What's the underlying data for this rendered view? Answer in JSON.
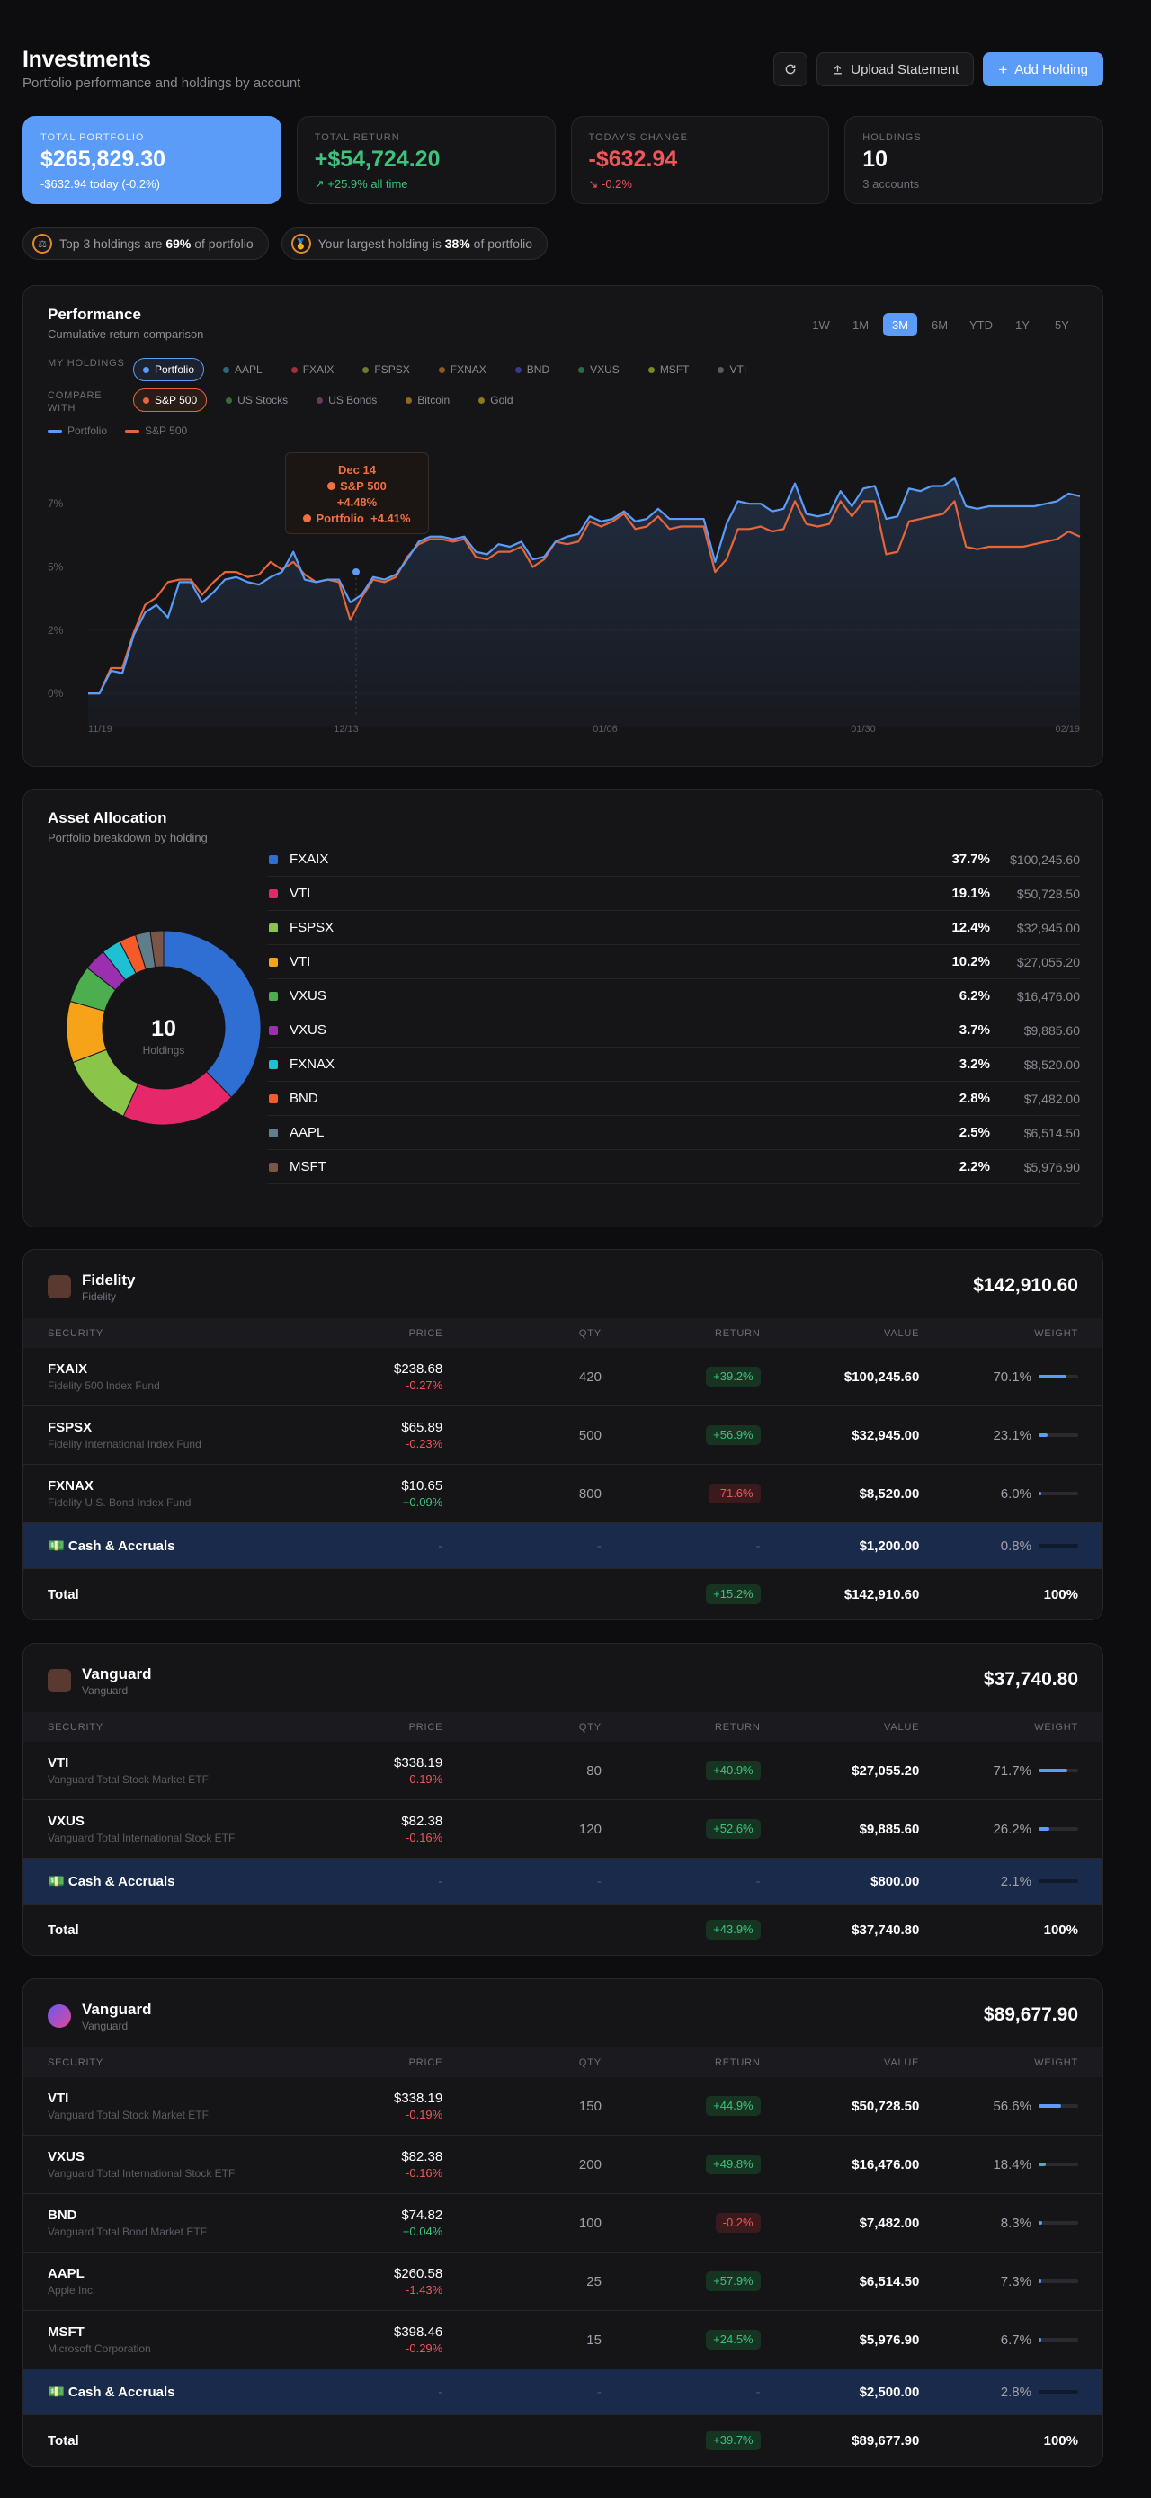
{
  "header": {
    "title": "Investments",
    "subtitle": "Portfolio performance and holdings by account",
    "refresh_icon": "refresh-icon",
    "upload_label": "Upload Statement",
    "add_label": "Add Holding"
  },
  "stats": [
    {
      "label": "Total Portfolio",
      "value": "$265,829.30",
      "note": "-$632.94 today (-0.2%)"
    },
    {
      "label": "Total Return",
      "value": "+$54,724.20",
      "note": "+25.9% all time"
    },
    {
      "label": "Today's Change",
      "value": "-$632.94",
      "note": "-0.2%"
    },
    {
      "label": "Holdings",
      "value": "10",
      "note": "3 accounts"
    }
  ],
  "insights": [
    {
      "pre": "Top 3 holdings are ",
      "bold": "69%",
      "post": " of portfolio"
    },
    {
      "pre": "Your largest holding is ",
      "bold": "38%",
      "post": " of portfolio"
    }
  ],
  "performance": {
    "title": "Performance",
    "subtitle": "Cumulative return comparison",
    "ranges": [
      "1W",
      "1M",
      "3M",
      "6M",
      "YTD",
      "1Y",
      "5Y"
    ],
    "active_range": "3M",
    "my_holdings_label": "My Holdings",
    "compare_label": "Compare with",
    "holdings": [
      {
        "name": "Portfolio",
        "color": "#5b9cf8"
      },
      {
        "name": "AAPL",
        "color": "#2a6a78"
      },
      {
        "name": "FXAIX",
        "color": "#a03040"
      },
      {
        "name": "FSPSX",
        "color": "#6a7a30"
      },
      {
        "name": "FXNAX",
        "color": "#8a5a20"
      },
      {
        "name": "BND",
        "color": "#3a3a8a"
      },
      {
        "name": "VXUS",
        "color": "#2a6a48"
      },
      {
        "name": "MSFT",
        "color": "#7a8a20"
      },
      {
        "name": "VTI",
        "color": "#5a5a62"
      }
    ],
    "compare": [
      {
        "name": "S&P 500",
        "color": "#e8653a"
      },
      {
        "name": "US Stocks",
        "color": "#3a6a3a"
      },
      {
        "name": "US Bonds",
        "color": "#6a3a5a"
      },
      {
        "name": "Bitcoin",
        "color": "#8a6a20"
      },
      {
        "name": "Gold",
        "color": "#8a7a20"
      }
    ],
    "legend": [
      {
        "name": "Portfolio",
        "color": "#5b9cf8"
      },
      {
        "name": "S&P 500",
        "color": "#e8653a"
      }
    ],
    "tooltip": {
      "date": "Dec 14",
      "sp_label": "S&P 500",
      "sp_value": "+4.48%",
      "pf_label": "Portfolio",
      "pf_value": "+4.41%"
    }
  },
  "chart_data": {
    "type": "line",
    "y_ticks": [
      "7%",
      "5%",
      "2%",
      "0%"
    ],
    "x_ticks": [
      "11/19",
      "12/13",
      "01/06",
      "01/30",
      "02/19"
    ],
    "ylim": [
      -0.6,
      9
    ],
    "series": [
      {
        "name": "Portfolio",
        "color": "#5b9cf8",
        "values": [
          0,
          0,
          0.9,
          0.8,
          2.3,
          3.2,
          3.5,
          3.0,
          4.4,
          4.4,
          3.6,
          4.0,
          4.5,
          4.6,
          4.4,
          4.3,
          4.6,
          4.8,
          5.6,
          4.5,
          4.4,
          4.5,
          4.5,
          3.6,
          3.9,
          4.6,
          4.5,
          4.7,
          5.3,
          6.0,
          6.2,
          6.2,
          6.1,
          6.2,
          5.6,
          5.5,
          5.9,
          5.8,
          6.0,
          5.3,
          5.4,
          6.0,
          6.2,
          6.3,
          7.0,
          6.8,
          6.9,
          7.2,
          6.8,
          6.9,
          7.3,
          6.9,
          6.9,
          6.9,
          6.9,
          5.2,
          6.7,
          7.6,
          7.5,
          7.5,
          7.2,
          7.3,
          8.3,
          7.1,
          7.0,
          7.1,
          8.0,
          7.4,
          8.1,
          8.2,
          6.9,
          7.0,
          8.1,
          8.0,
          8.2,
          8.2,
          8.5,
          7.4,
          7.3,
          7.4,
          7.4,
          7.4,
          7.4,
          7.4,
          7.5,
          7.6,
          7.9,
          7.8
        ]
      },
      {
        "name": "S&P 500",
        "color": "#e8653a",
        "values": [
          0,
          0,
          1.0,
          1.0,
          2.4,
          3.5,
          3.8,
          4.4,
          4.5,
          4.5,
          3.9,
          4.4,
          4.8,
          4.8,
          4.6,
          4.7,
          5.2,
          4.9,
          5.2,
          4.7,
          4.4,
          4.5,
          4.4,
          2.9,
          3.8,
          4.5,
          4.4,
          4.6,
          5.4,
          5.9,
          6.1,
          6.1,
          6.0,
          6.1,
          5.4,
          5.3,
          5.6,
          5.6,
          5.8,
          5.0,
          5.3,
          6.0,
          5.9,
          6.0,
          6.8,
          6.6,
          6.8,
          7.1,
          6.5,
          6.6,
          7.0,
          6.5,
          6.6,
          6.6,
          6.6,
          4.8,
          5.3,
          6.5,
          6.5,
          6.6,
          6.4,
          6.5,
          7.6,
          6.7,
          6.6,
          6.7,
          7.6,
          7.0,
          7.6,
          7.6,
          5.5,
          5.6,
          6.8,
          6.9,
          7.0,
          7.1,
          7.6,
          5.8,
          5.7,
          5.8,
          5.8,
          5.8,
          5.8,
          5.9,
          6.0,
          6.1,
          6.4,
          6.2
        ]
      }
    ]
  },
  "allocation": {
    "title": "Asset Allocation",
    "subtitle": "Portfolio breakdown by holding",
    "center_value": "10",
    "center_label": "Holdings",
    "items": [
      {
        "name": "FXAIX",
        "pct": "37.7%",
        "amount": "$100,245.60",
        "share": 37.7,
        "color": "#2f6fd4"
      },
      {
        "name": "VTI",
        "pct": "19.1%",
        "amount": "$50,728.50",
        "share": 19.1,
        "color": "#e6286a"
      },
      {
        "name": "FSPSX",
        "pct": "12.4%",
        "amount": "$32,945.00",
        "share": 12.4,
        "color": "#8ac448"
      },
      {
        "name": "VTI",
        "pct": "10.2%",
        "amount": "$27,055.20",
        "share": 10.2,
        "color": "#f6a31a"
      },
      {
        "name": "VXUS",
        "pct": "6.2%",
        "amount": "$16,476.00",
        "share": 6.2,
        "color": "#4cae4f"
      },
      {
        "name": "VXUS",
        "pct": "3.7%",
        "amount": "$9,885.60",
        "share": 3.7,
        "color": "#9b2fb0"
      },
      {
        "name": "FXNAX",
        "pct": "3.2%",
        "amount": "$8,520.00",
        "share": 3.2,
        "color": "#1ec0d4"
      },
      {
        "name": "BND",
        "pct": "2.8%",
        "amount": "$7,482.00",
        "share": 2.8,
        "color": "#f45a2a"
      },
      {
        "name": "AAPL",
        "pct": "2.5%",
        "amount": "$6,514.50",
        "share": 2.5,
        "color": "#607d8b"
      },
      {
        "name": "MSFT",
        "pct": "2.2%",
        "amount": "$5,976.90",
        "share": 2.2,
        "color": "#7a5548"
      }
    ]
  },
  "table_headers": {
    "security": "Security",
    "price": "Price",
    "qty": "Qty",
    "return": "Return",
    "value": "Value",
    "weight": "Weight"
  },
  "accounts": [
    {
      "name": "Fidelity",
      "sub": "Fidelity",
      "total": "$142,910.60",
      "logo": "wallet-icon",
      "rows": [
        {
          "sym": "FXAIX",
          "desc": "Fidelity 500 Index Fund",
          "price": "$238.68",
          "chg": "-0.27%",
          "qty": "420",
          "ret": "+39.2%",
          "value": "$100,245.60",
          "weight": "70.1%",
          "w": 70.1
        },
        {
          "sym": "FSPSX",
          "desc": "Fidelity International Index Fund",
          "price": "$65.89",
          "chg": "-0.23%",
          "qty": "500",
          "ret": "+56.9%",
          "value": "$32,945.00",
          "weight": "23.1%",
          "w": 23.1
        },
        {
          "sym": "FXNAX",
          "desc": "Fidelity U.S. Bond Index Fund",
          "price": "$10.65",
          "chg": "+0.09%",
          "qty": "800",
          "ret": "-71.6%",
          "value": "$8,520.00",
          "weight": "6.0%",
          "w": 6.0
        }
      ],
      "cash": {
        "label": "Cash & Accruals",
        "value": "$1,200.00",
        "weight": "0.8%"
      },
      "totalrow": {
        "label": "Total",
        "ret": "+15.2%",
        "value": "$142,910.60",
        "weight": "100%"
      }
    },
    {
      "name": "Vanguard",
      "sub": "Vanguard",
      "total": "$37,740.80",
      "logo": "wallet-icon",
      "rows": [
        {
          "sym": "VTI",
          "desc": "Vanguard Total Stock Market ETF",
          "price": "$338.19",
          "chg": "-0.19%",
          "qty": "80",
          "ret": "+40.9%",
          "value": "$27,055.20",
          "weight": "71.7%",
          "w": 71.7
        },
        {
          "sym": "VXUS",
          "desc": "Vanguard Total International Stock ETF",
          "price": "$82.38",
          "chg": "-0.16%",
          "qty": "120",
          "ret": "+52.6%",
          "value": "$9,885.60",
          "weight": "26.2%",
          "w": 26.2
        }
      ],
      "cash": {
        "label": "Cash & Accruals",
        "value": "$800.00",
        "weight": "2.1%"
      },
      "totalrow": {
        "label": "Total",
        "ret": "+43.9%",
        "value": "$37,740.80",
        "weight": "100%"
      }
    },
    {
      "name": "Vanguard",
      "sub": "Vanguard",
      "total": "$89,677.90",
      "logo": "globe-icon",
      "rows": [
        {
          "sym": "VTI",
          "desc": "Vanguard Total Stock Market ETF",
          "price": "$338.19",
          "chg": "-0.19%",
          "qty": "150",
          "ret": "+44.9%",
          "value": "$50,728.50",
          "weight": "56.6%",
          "w": 56.6
        },
        {
          "sym": "VXUS",
          "desc": "Vanguard Total International Stock ETF",
          "price": "$82.38",
          "chg": "-0.16%",
          "qty": "200",
          "ret": "+49.8%",
          "value": "$16,476.00",
          "weight": "18.4%",
          "w": 18.4
        },
        {
          "sym": "BND",
          "desc": "Vanguard Total Bond Market ETF",
          "price": "$74.82",
          "chg": "+0.04%",
          "qty": "100",
          "ret": "-0.2%",
          "value": "$7,482.00",
          "weight": "8.3%",
          "w": 8.3
        },
        {
          "sym": "AAPL",
          "desc": "Apple Inc.",
          "price": "$260.58",
          "chg": "-1.43%",
          "qty": "25",
          "ret": "+57.9%",
          "value": "$6,514.50",
          "weight": "7.3%",
          "w": 7.3
        },
        {
          "sym": "MSFT",
          "desc": "Microsoft Corporation",
          "price": "$398.46",
          "chg": "-0.29%",
          "qty": "15",
          "ret": "+24.5%",
          "value": "$5,976.90",
          "weight": "6.7%",
          "w": 6.7
        }
      ],
      "cash": {
        "label": "Cash & Accruals",
        "value": "$2,500.00",
        "weight": "2.8%"
      },
      "totalrow": {
        "label": "Total",
        "ret": "+39.7%",
        "value": "$89,677.90",
        "weight": "100%"
      }
    }
  ]
}
